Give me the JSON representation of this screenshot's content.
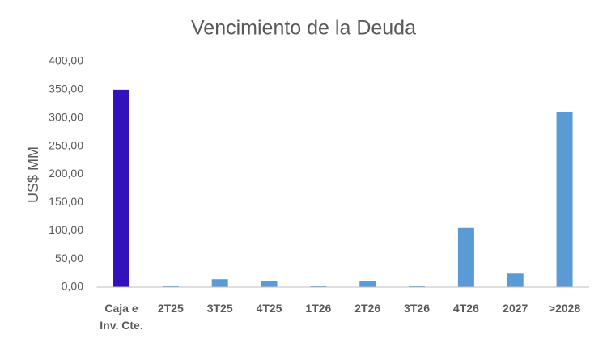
{
  "chart_data": {
    "type": "bar",
    "title": "Vencimiento de la Deuda",
    "y_label": "US$ MM",
    "categories": [
      "Caja e Inv. Cte.",
      "2T25",
      "3T25",
      "4T25",
      "1T26",
      "2T26",
      "3T26",
      "4T26",
      "2027",
      ">2028"
    ],
    "values": [
      350,
      2,
      14,
      10,
      2,
      10,
      2,
      105,
      24,
      310
    ],
    "colors": [
      "#3311bb",
      "#5b9bd5",
      "#5b9bd5",
      "#5b9bd5",
      "#5b9bd5",
      "#5b9bd5",
      "#5b9bd5",
      "#5b9bd5",
      "#5b9bd5",
      "#5b9bd5"
    ],
    "ylim": [
      0,
      400
    ],
    "yticks": [
      {
        "value": 0,
        "label": "0,00"
      },
      {
        "value": 50,
        "label": "50,00"
      },
      {
        "value": 100,
        "label": "100,00"
      },
      {
        "value": 150,
        "label": "150,00"
      },
      {
        "value": 200,
        "label": "200,00"
      },
      {
        "value": 250,
        "label": "250,00"
      },
      {
        "value": 300,
        "label": "300,00"
      },
      {
        "value": 350,
        "label": "350,00"
      },
      {
        "value": 400,
        "label": "400,00"
      }
    ],
    "grid": false
  }
}
